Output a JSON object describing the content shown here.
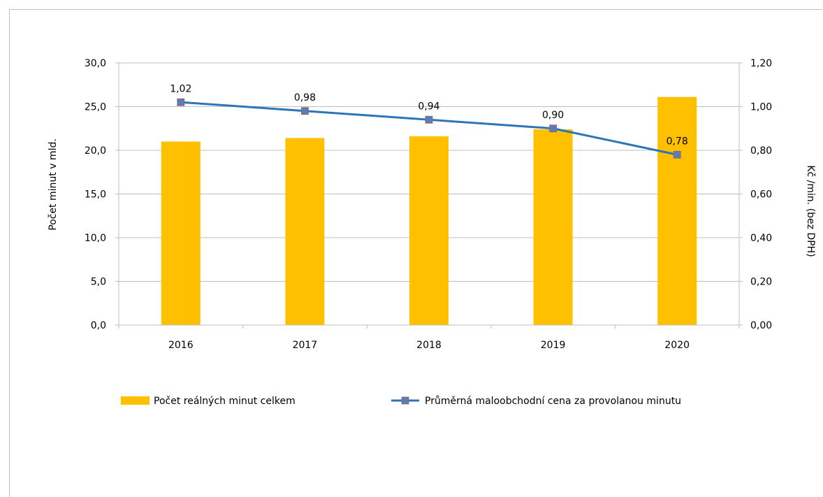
{
  "chart_data": {
    "type": "bar+line",
    "categories": [
      "2016",
      "2017",
      "2018",
      "2019",
      "2020"
    ],
    "series": [
      {
        "name": "Počet reálných minut celkem",
        "type": "bar",
        "axis": "left",
        "color": "#ffc000",
        "values": [
          21.0,
          21.4,
          21.6,
          22.4,
          26.1
        ]
      },
      {
        "name": "Průměrná maloobchodní cena za provolanou minutu",
        "type": "line",
        "axis": "right",
        "color": "#2e75b6",
        "marker_color": "#4f81bd",
        "values": [
          1.02,
          0.98,
          0.94,
          0.9,
          0.78
        ],
        "data_labels": [
          "1,02",
          "0,98",
          "0,94",
          "0,90",
          "0,78"
        ]
      }
    ],
    "y_left": {
      "label": "Počet minut v mld.",
      "ylim": [
        0,
        30
      ],
      "ticks": [
        0,
        5,
        10,
        15,
        20,
        25,
        30
      ],
      "tick_labels": [
        "0,0",
        "5,0",
        "10,0",
        "15,0",
        "20,0",
        "25,0",
        "30,0"
      ]
    },
    "y_right": {
      "label": "Kč /min. (bez DPH)",
      "ylim": [
        0,
        1.2
      ],
      "ticks": [
        0,
        0.2,
        0.4,
        0.6,
        0.8,
        1.0,
        1.2
      ],
      "tick_labels": [
        "0,00",
        "0,20",
        "0,40",
        "0,60",
        "0,80",
        "1,00",
        "1,20"
      ]
    },
    "grid": true,
    "legend_position": "bottom",
    "gridline_color": "#bfbfbf"
  }
}
